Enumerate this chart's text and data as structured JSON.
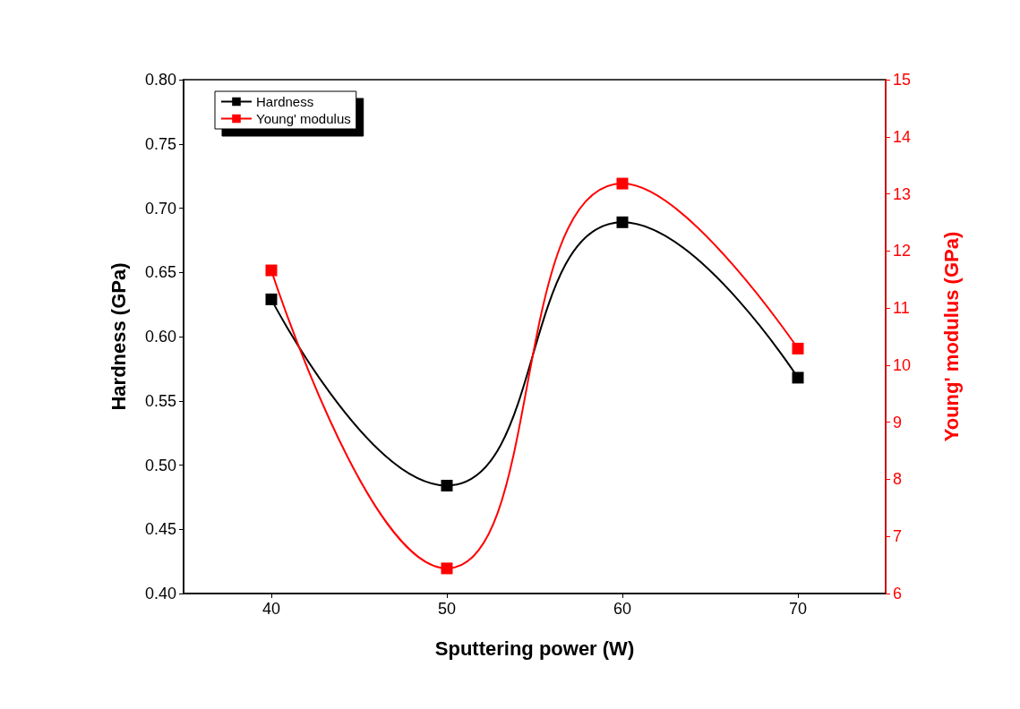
{
  "chart_data": {
    "type": "line",
    "xlabel": "Sputtering power (W)",
    "ylabel": "Hardness (GPa)",
    "y2label": "Young' modulus (GPa)",
    "x": [
      40,
      50,
      60,
      70
    ],
    "series": [
      {
        "name": "Hardness",
        "color": "#000000",
        "values": [
          0.629,
          0.484,
          0.689,
          0.568
        ]
      },
      {
        "name": "Young' modulus",
        "color": "#ff0000",
        "values": [
          11.66,
          6.44,
          13.18,
          10.29
        ],
        "axis": "y2"
      }
    ],
    "xlim": [
      35,
      75
    ],
    "xticks": [
      40,
      50,
      60,
      70
    ],
    "ylim": [
      0.4,
      0.8
    ],
    "yticks": [
      {
        "value": 0.4,
        "label": "0.40"
      },
      {
        "value": 0.45,
        "label": "0.45"
      },
      {
        "value": 0.5,
        "label": "0.50"
      },
      {
        "value": 0.55,
        "label": "0.55"
      },
      {
        "value": 0.6,
        "label": "0.60"
      },
      {
        "value": 0.65,
        "label": "0.65"
      },
      {
        "value": 0.7,
        "label": "0.70"
      },
      {
        "value": 0.75,
        "label": "0.75"
      },
      {
        "value": 0.8,
        "label": "0.80"
      }
    ],
    "y2lim": [
      6,
      15
    ],
    "y2ticks": [
      6,
      7,
      8,
      9,
      10,
      11,
      12,
      13,
      14,
      15
    ],
    "grid": false,
    "legend": "top left",
    "marker": "square",
    "line_style": "solid"
  }
}
